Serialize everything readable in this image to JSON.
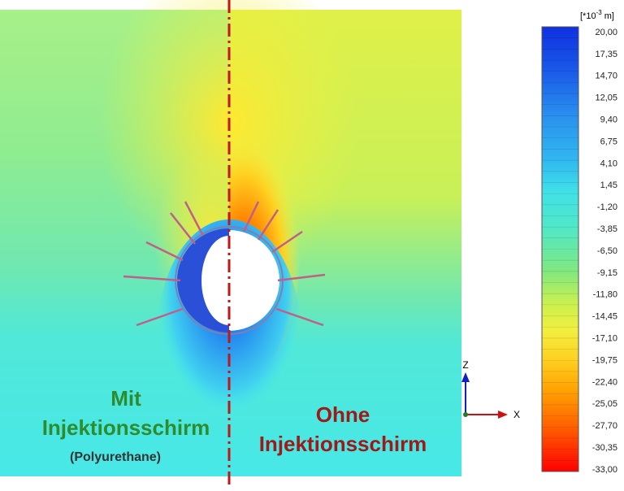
{
  "legend": {
    "unit": {
      "prefix": "[*10",
      "exponent": "-3",
      "suffix": " m]"
    },
    "labels": [
      "20,00",
      "17,35",
      "14,70",
      "12,05",
      "9,40",
      "6,75",
      "4,10",
      "1,45",
      "-1,20",
      "-3,85",
      "-6,50",
      "-9,15",
      "-11,80",
      "-14,45",
      "-17,10",
      "-19,75",
      "-22,40",
      "-25,05",
      "-27,70",
      "-30,35",
      "-33,00"
    ]
  },
  "annotations": {
    "left": {
      "line1": "Mit",
      "line2": "Injektionsschirm",
      "line3": "(Polyurethane)"
    },
    "right": {
      "line1": "Ohne",
      "line2": "Injektionsschirm"
    }
  },
  "axes": {
    "z": "Z",
    "x": "X"
  }
}
